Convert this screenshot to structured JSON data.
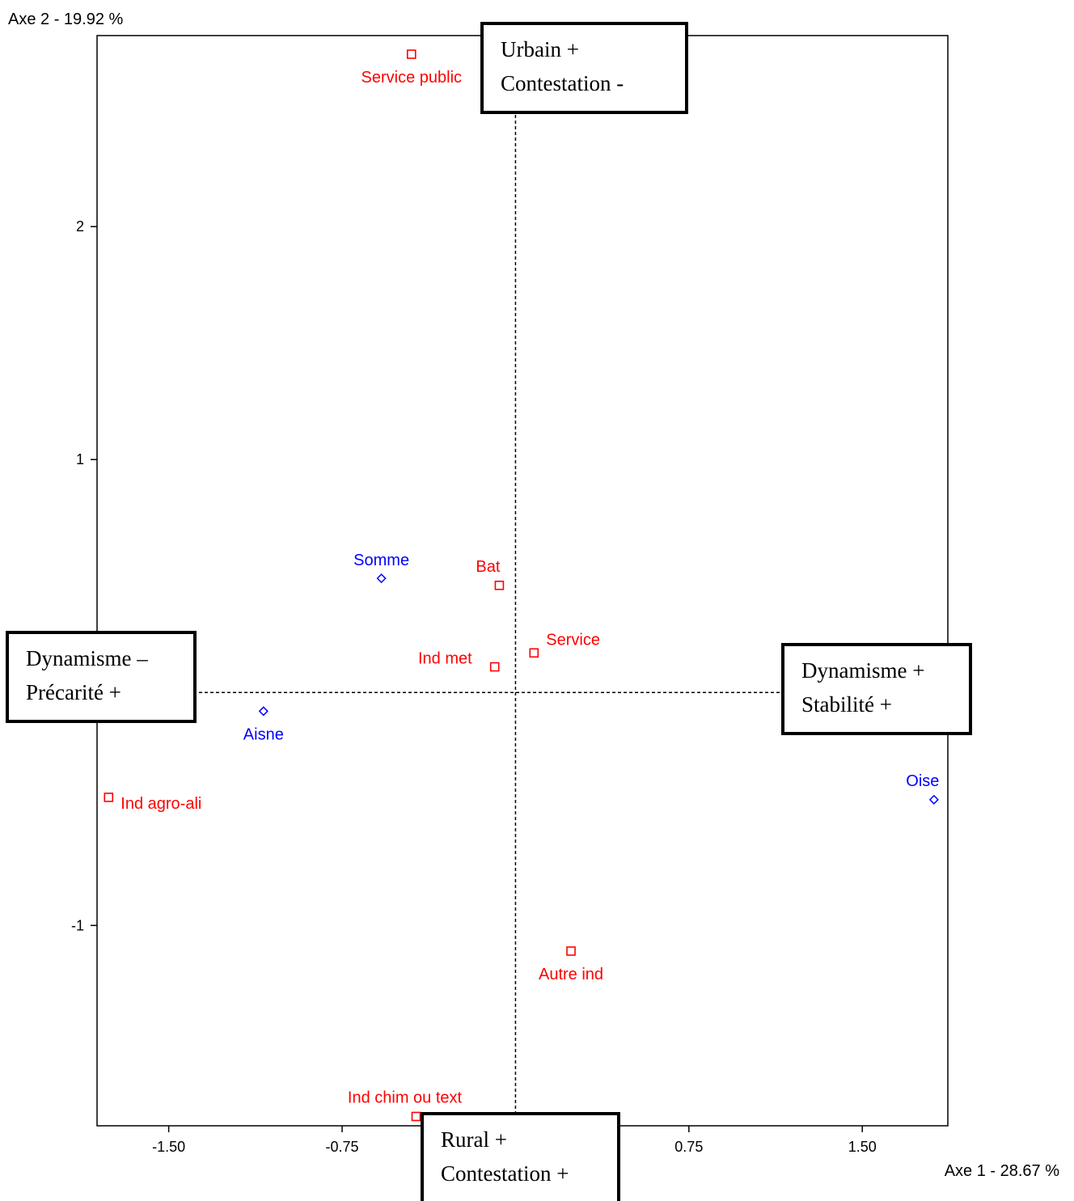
{
  "chart_data": {
    "type": "scatter",
    "xlabel": "Axe 1  -  28.67 %",
    "ylabel": "Axe 2  -  19.92 %",
    "xlim": [
      -1.81,
      1.87
    ],
    "ylim": [
      -1.86,
      2.82
    ],
    "x_ticks": [
      {
        "value": -1.5,
        "label": "-1.50"
      },
      {
        "value": -0.75,
        "label": "-0.75"
      },
      {
        "value": 0.75,
        "label": "0.75"
      },
      {
        "value": 1.5,
        "label": "1.50"
      }
    ],
    "y_ticks": [
      {
        "value": 2,
        "label": "2"
      },
      {
        "value": 1,
        "label": "1"
      },
      {
        "value": -1,
        "label": "-1"
      }
    ],
    "grid": false,
    "origin_lines": "dashed",
    "series": [
      {
        "marker": "square",
        "color": "#ff0000",
        "points": [
          {
            "label": "Service public",
            "x": -0.45,
            "y": 2.74,
            "label_pos": "below"
          },
          {
            "label": "Bat",
            "x": -0.07,
            "y": 0.46,
            "label_pos": "above-left"
          },
          {
            "label": "Service",
            "x": 0.08,
            "y": 0.17,
            "label_pos": "right"
          },
          {
            "label": "Ind met",
            "x": -0.09,
            "y": 0.11,
            "label_pos": "left"
          },
          {
            "label": "Ind agro-ali",
            "x": -1.76,
            "y": -0.45,
            "label_pos": "right"
          },
          {
            "label": "Autre ind",
            "x": 0.24,
            "y": -1.11,
            "label_pos": "below"
          },
          {
            "label": "Ind chim ou text",
            "x": -0.43,
            "y": -1.82,
            "label_pos": "above-left"
          }
        ]
      },
      {
        "marker": "diamond",
        "color": "#0000ff",
        "points": [
          {
            "label": "Somme",
            "x": -0.58,
            "y": 0.49,
            "label_pos": "above"
          },
          {
            "label": "Aisne",
            "x": -1.09,
            "y": -0.08,
            "label_pos": "below"
          },
          {
            "label": "Oise",
            "x": 1.81,
            "y": -0.46,
            "label_pos": "above-left"
          }
        ]
      }
    ],
    "annotations": [
      {
        "id": "top",
        "lines": [
          "Urbain +",
          "Contestation -"
        ]
      },
      {
        "id": "left",
        "lines": [
          "Dynamisme –",
          "Précarité +"
        ]
      },
      {
        "id": "right",
        "lines": [
          "Dynamisme +",
          "Stabilité +"
        ]
      },
      {
        "id": "bottom",
        "lines": [
          "Rural +",
          "Contestation +"
        ]
      }
    ]
  }
}
